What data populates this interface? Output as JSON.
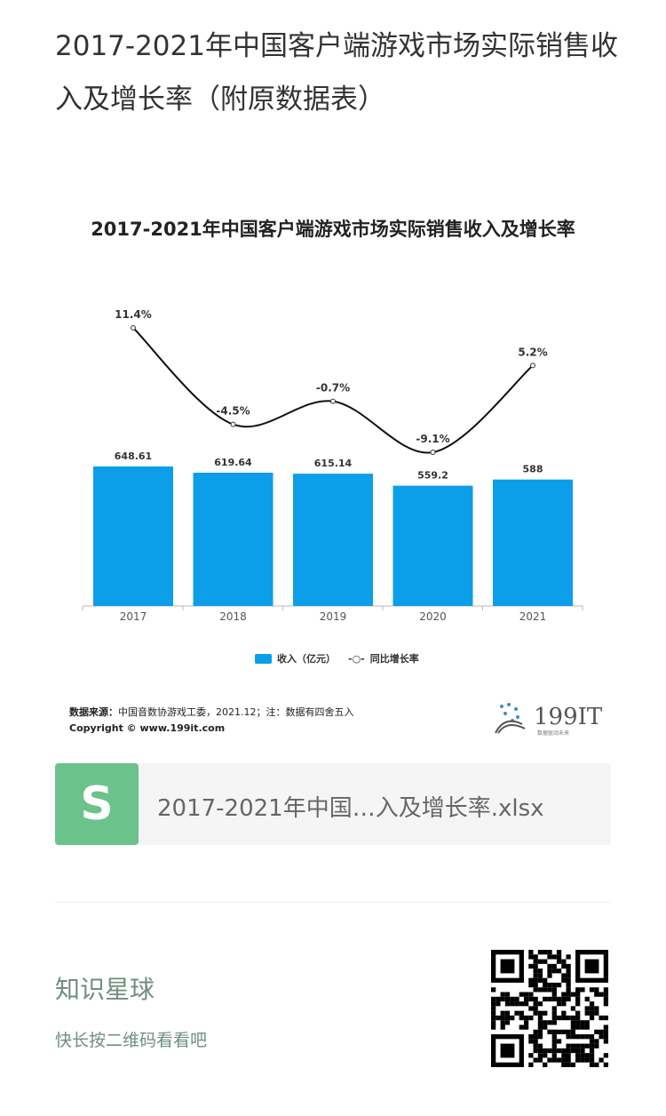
{
  "page_title": "2017-2021年中国客户端游戏市场实际销售收入及增长率（附原数据表）",
  "chart_data": {
    "type": "bar+line",
    "title": "2017-2021年中国客户端游戏市场实际销售收入及增长率",
    "categories": [
      "2017",
      "2018",
      "2019",
      "2020",
      "2021"
    ],
    "series": [
      {
        "name": "收入（亿元）",
        "type": "bar",
        "values": [
          648.61,
          619.64,
          615.14,
          559.2,
          588
        ],
        "labels": [
          "648.61",
          "619.64",
          "615.14",
          "559.2",
          "588"
        ],
        "color": "#0d9ee9"
      },
      {
        "name": "同比增长率",
        "type": "line",
        "values": [
          11.4,
          -4.5,
          -0.7,
          -9.1,
          5.2
        ],
        "labels": [
          "11.4%",
          "-4.5%",
          "-0.7%",
          "-9.1%",
          "5.2%"
        ],
        "color": "#111111"
      }
    ],
    "ylim": [
      0,
      700
    ],
    "legend": "bottom",
    "grid": false
  },
  "source_label": "数据来源：",
  "source_text": "中国音数协游戏工委，2021.12；注：数据有四舍五入",
  "copyright": "Copyright © www.199it.com",
  "logo": {
    "text": "199IT",
    "tagline": "数据驱动未来"
  },
  "file": {
    "name": "2017-2021年中国…入及增长率.xlsx",
    "icon": "spreadsheet-icon",
    "color": "#6cc28b"
  },
  "promo": {
    "title": "知识星球",
    "subtitle": "快长按二维码看看吧"
  }
}
